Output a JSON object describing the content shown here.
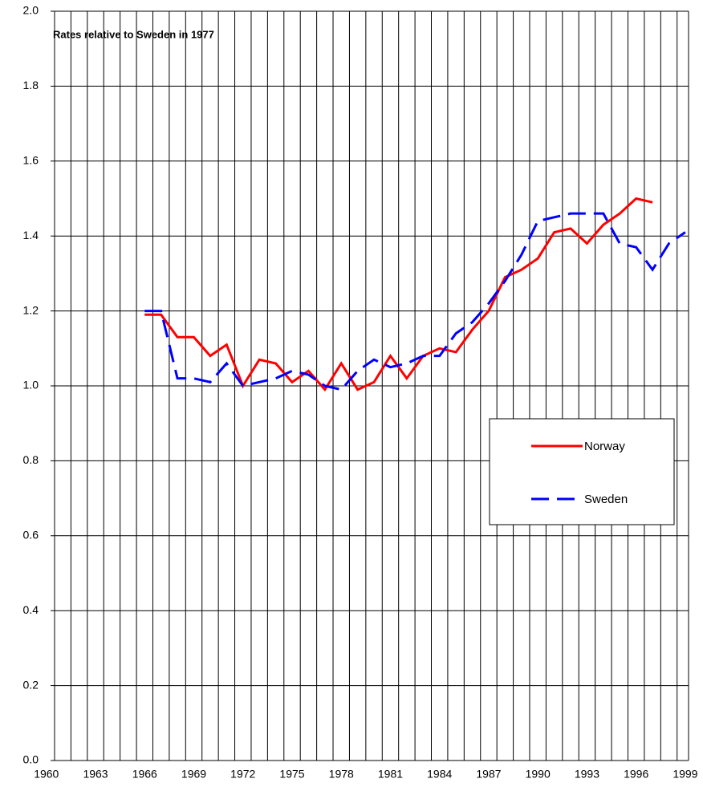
{
  "chart_data": {
    "type": "line",
    "annotation": "Rates relative to Sweden in 1977",
    "x": [
      1966,
      1967,
      1968,
      1969,
      1970,
      1971,
      1972,
      1973,
      1974,
      1975,
      1976,
      1977,
      1978,
      1979,
      1980,
      1981,
      1982,
      1983,
      1984,
      1985,
      1986,
      1987,
      1988,
      1989,
      1990,
      1991,
      1992,
      1993,
      1994,
      1995,
      1996,
      1997,
      1998,
      1999
    ],
    "series": [
      {
        "name": "Norway",
        "color": "#ff0000",
        "dash": false,
        "values": [
          1.19,
          1.19,
          1.13,
          1.13,
          1.08,
          1.11,
          1.0,
          1.07,
          1.06,
          1.01,
          1.04,
          0.99,
          1.06,
          0.99,
          1.01,
          1.08,
          1.02,
          1.08,
          1.1,
          1.09,
          1.15,
          1.2,
          1.29,
          1.31,
          1.34,
          1.41,
          1.42,
          1.38,
          1.43,
          1.46,
          1.5,
          1.49,
          null,
          null
        ]
      },
      {
        "name": "Sweden",
        "color": "#0000ff",
        "dash": true,
        "values": [
          1.2,
          1.2,
          1.02,
          1.02,
          1.01,
          1.06,
          1.0,
          1.01,
          1.02,
          1.04,
          1.03,
          1.0,
          0.99,
          1.04,
          1.07,
          1.05,
          1.06,
          1.08,
          1.08,
          1.14,
          1.17,
          1.22,
          1.28,
          1.35,
          1.44,
          1.45,
          1.46,
          1.46,
          1.46,
          1.38,
          1.37,
          1.31,
          1.38,
          1.41
        ]
      }
    ],
    "xlim": [
      1960.5,
      1999.2
    ],
    "xticks": [
      1960,
      1963,
      1966,
      1969,
      1972,
      1975,
      1978,
      1981,
      1984,
      1987,
      1990,
      1993,
      1996,
      1999
    ],
    "ylim": [
      0,
      2
    ],
    "yticks": [
      {
        "value": 0,
        "label": "0.0"
      },
      {
        "value": 0.2,
        "label": "0.2"
      },
      {
        "value": 0.4,
        "label": "0.4"
      },
      {
        "value": 0.6,
        "label": "0.6"
      },
      {
        "value": 0.8,
        "label": "0.8"
      },
      {
        "value": 1,
        "label": "1.0"
      },
      {
        "value": 1.2,
        "label": "1.2"
      },
      {
        "value": 1.4,
        "label": "1.4"
      },
      {
        "value": 1.6,
        "label": "1.6"
      },
      {
        "value": 1.8,
        "label": "1.8"
      },
      {
        "value": 2,
        "label": "2.0"
      }
    ],
    "grid": true,
    "legend": "right"
  }
}
